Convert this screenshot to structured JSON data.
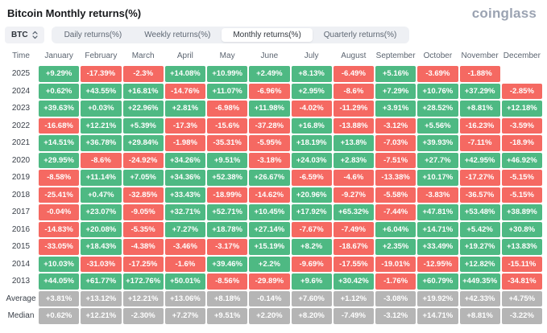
{
  "header": {
    "title": "Bitcoin Monthly returns(%)",
    "logo": "coinglass"
  },
  "controls": {
    "symbol_button": {
      "label": "BTC",
      "icon": "updown-chevron-icon"
    },
    "tabs": [
      {
        "label": "Daily returns(%)",
        "active": false
      },
      {
        "label": "Weekly returns(%)",
        "active": false
      },
      {
        "label": "Monthly returns(%)",
        "active": true
      },
      {
        "label": "Quarterly returns(%)",
        "active": false
      }
    ]
  },
  "colors": {
    "positive": "#4eb983",
    "negative": "#f56962",
    "neutral": "#b5b5b5"
  },
  "chart_data": {
    "type": "heatmap",
    "title": "Bitcoin Monthly returns(%)",
    "columns": [
      "Time",
      "January",
      "February",
      "March",
      "April",
      "May",
      "June",
      "July",
      "August",
      "September",
      "October",
      "November",
      "December"
    ],
    "rows": [
      {
        "label": "2025",
        "muted": false,
        "values": [
          "+9.29%",
          "-17.39%",
          "-2.3%",
          "+14.08%",
          "+10.99%",
          "+2.49%",
          "+8.13%",
          "-6.49%",
          "+5.16%",
          "-3.69%",
          "-1.88%",
          ""
        ]
      },
      {
        "label": "2024",
        "muted": false,
        "values": [
          "+0.62%",
          "+43.55%",
          "+16.81%",
          "-14.76%",
          "+11.07%",
          "-6.96%",
          "+2.95%",
          "-8.6%",
          "+7.29%",
          "+10.76%",
          "+37.29%",
          "-2.85%"
        ]
      },
      {
        "label": "2023",
        "muted": false,
        "values": [
          "+39.63%",
          "+0.03%",
          "+22.96%",
          "+2.81%",
          "-6.98%",
          "+11.98%",
          "-4.02%",
          "-11.29%",
          "+3.91%",
          "+28.52%",
          "+8.81%",
          "+12.18%"
        ]
      },
      {
        "label": "2022",
        "muted": false,
        "values": [
          "-16.68%",
          "+12.21%",
          "+5.39%",
          "-17.3%",
          "-15.6%",
          "-37.28%",
          "+16.8%",
          "-13.88%",
          "-3.12%",
          "+5.56%",
          "-16.23%",
          "-3.59%"
        ]
      },
      {
        "label": "2021",
        "muted": false,
        "values": [
          "+14.51%",
          "+36.78%",
          "+29.84%",
          "-1.98%",
          "-35.31%",
          "-5.95%",
          "+18.19%",
          "+13.8%",
          "-7.03%",
          "+39.93%",
          "-7.11%",
          "-18.9%"
        ]
      },
      {
        "label": "2020",
        "muted": false,
        "values": [
          "+29.95%",
          "-8.6%",
          "-24.92%",
          "+34.26%",
          "+9.51%",
          "-3.18%",
          "+24.03%",
          "+2.83%",
          "-7.51%",
          "+27.7%",
          "+42.95%",
          "+46.92%"
        ]
      },
      {
        "label": "2019",
        "muted": false,
        "values": [
          "-8.58%",
          "+11.14%",
          "+7.05%",
          "+34.36%",
          "+52.38%",
          "+26.67%",
          "-6.59%",
          "-4.6%",
          "-13.38%",
          "+10.17%",
          "-17.27%",
          "-5.15%"
        ]
      },
      {
        "label": "2018",
        "muted": false,
        "values": [
          "-25.41%",
          "+0.47%",
          "-32.85%",
          "+33.43%",
          "-18.99%",
          "-14.62%",
          "+20.96%",
          "-9.27%",
          "-5.58%",
          "-3.83%",
          "-36.57%",
          "-5.15%"
        ]
      },
      {
        "label": "2017",
        "muted": false,
        "values": [
          "-0.04%",
          "+23.07%",
          "-9.05%",
          "+32.71%",
          "+52.71%",
          "+10.45%",
          "+17.92%",
          "+65.32%",
          "-7.44%",
          "+47.81%",
          "+53.48%",
          "+38.89%"
        ]
      },
      {
        "label": "2016",
        "muted": false,
        "values": [
          "-14.83%",
          "+20.08%",
          "-5.35%",
          "+7.27%",
          "+18.78%",
          "+27.14%",
          "-7.67%",
          "-7.49%",
          "+6.04%",
          "+14.71%",
          "+5.42%",
          "+30.8%"
        ]
      },
      {
        "label": "2015",
        "muted": false,
        "values": [
          "-33.05%",
          "+18.43%",
          "-4.38%",
          "-3.46%",
          "-3.17%",
          "+15.19%",
          "+8.2%",
          "-18.67%",
          "+2.35%",
          "+33.49%",
          "+19.27%",
          "+13.83%"
        ]
      },
      {
        "label": "2014",
        "muted": false,
        "values": [
          "+10.03%",
          "-31.03%",
          "-17.25%",
          "-1.6%",
          "+39.46%",
          "+2.2%",
          "-9.69%",
          "-17.55%",
          "-19.01%",
          "-12.95%",
          "+12.82%",
          "-15.11%"
        ]
      },
      {
        "label": "2013",
        "muted": false,
        "values": [
          "+44.05%",
          "+61.77%",
          "+172.76%",
          "+50.01%",
          "-8.56%",
          "-29.89%",
          "+9.6%",
          "+30.42%",
          "-1.76%",
          "+60.79%",
          "+449.35%",
          "-34.81%"
        ]
      },
      {
        "label": "Average",
        "muted": true,
        "values": [
          "+3.81%",
          "+13.12%",
          "+12.21%",
          "+13.06%",
          "+8.18%",
          "-0.14%",
          "+7.60%",
          "+1.12%",
          "-3.08%",
          "+19.92%",
          "+42.33%",
          "+4.75%"
        ]
      },
      {
        "label": "Median",
        "muted": true,
        "values": [
          "+0.62%",
          "+12.21%",
          "-2.30%",
          "+7.27%",
          "+9.51%",
          "+2.20%",
          "+8.20%",
          "-7.49%",
          "-3.12%",
          "+14.71%",
          "+8.81%",
          "-3.22%"
        ]
      }
    ]
  }
}
